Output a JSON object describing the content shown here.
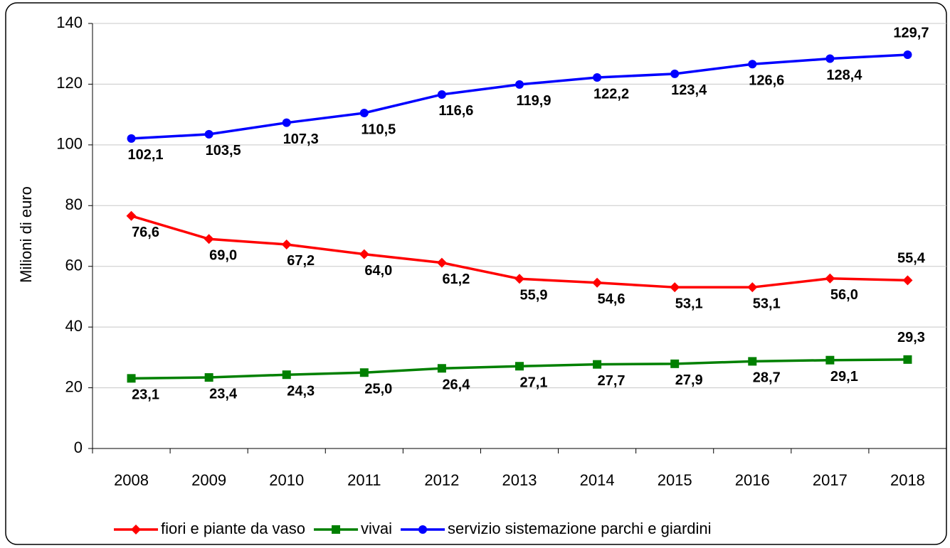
{
  "chart_data": {
    "type": "line",
    "y_label": "Milioni di euro",
    "categories": [
      "2008",
      "2009",
      "2010",
      "2011",
      "2012",
      "2013",
      "2014",
      "2015",
      "2016",
      "2017",
      "2018"
    ],
    "series": [
      {
        "name": "fiori e piante da vaso",
        "color": "#ff0000",
        "marker": "diamond",
        "values": [
          76.6,
          69.0,
          67.2,
          64.0,
          61.2,
          55.9,
          54.6,
          53.1,
          53.1,
          56.0,
          55.4
        ],
        "value_labels": [
          "76,6",
          "69,0",
          "67,2",
          "64,0",
          "61,2",
          "55,9",
          "54,6",
          "53,1",
          "53,1",
          "56,0",
          "55,4"
        ]
      },
      {
        "name": "vivai",
        "color": "#008000",
        "marker": "square",
        "values": [
          23.1,
          23.4,
          24.3,
          25.0,
          26.4,
          27.1,
          27.7,
          27.9,
          28.7,
          29.1,
          29.3
        ],
        "value_labels": [
          "23,1",
          "23,4",
          "24,3",
          "25,0",
          "26,4",
          "27,1",
          "27,7",
          "27,9",
          "28,7",
          "29,1",
          "29,3"
        ]
      },
      {
        "name": "servizio sistemazione parchi e giardini",
        "color": "#0000ff",
        "marker": "circle",
        "values": [
          102.1,
          103.5,
          107.3,
          110.5,
          116.6,
          119.9,
          122.2,
          123.4,
          126.6,
          128.4,
          129.7
        ],
        "value_labels": [
          "102,1",
          "103,5",
          "107,3",
          "110,5",
          "116,6",
          "119,9",
          "122,2",
          "123,4",
          "126,6",
          "128,4",
          "129,7"
        ]
      }
    ],
    "ylim": [
      0,
      140
    ],
    "yticks": [
      0,
      20,
      40,
      60,
      80,
      100,
      120,
      140
    ],
    "grid": true,
    "legend": "bottom"
  }
}
